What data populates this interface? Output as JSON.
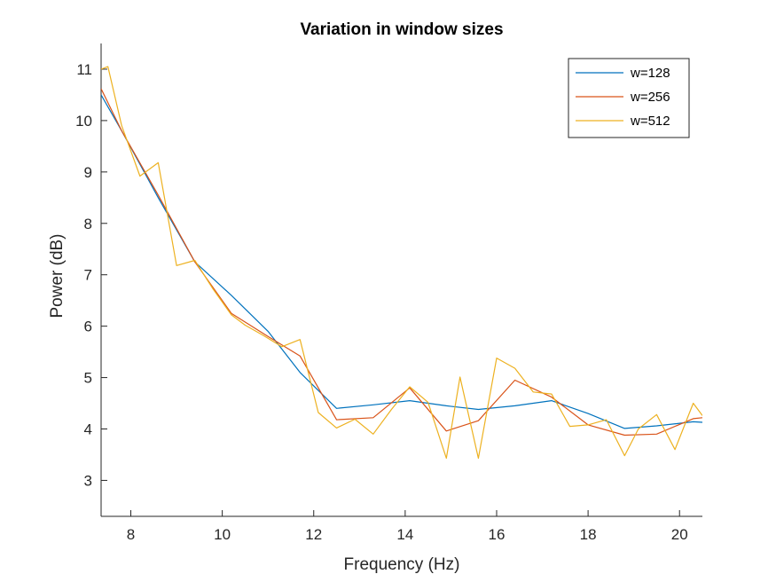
{
  "chart_data": {
    "type": "line",
    "title": "Variation in window sizes",
    "xlabel": "Frequency (Hz)",
    "ylabel": "Power (dB)",
    "xlim": [
      7.35,
      20.5
    ],
    "ylim": [
      2.3,
      11.5
    ],
    "xticks": [
      8,
      10,
      12,
      14,
      16,
      18,
      20
    ],
    "yticks": [
      3,
      4,
      5,
      6,
      7,
      8,
      9,
      10,
      11
    ],
    "grid": false,
    "legend_position": "top-right",
    "series": [
      {
        "name": "w=128",
        "color": "#0072BD",
        "x": [
          7.35,
          7.8,
          8.6,
          9.4,
          10.2,
          11.0,
          11.7,
          12.5,
          13.3,
          14.1,
          14.9,
          15.6,
          16.4,
          17.2,
          18.0,
          18.8,
          19.5,
          20.3,
          20.5
        ],
        "y": [
          10.5,
          9.8,
          8.5,
          7.25,
          6.6,
          5.9,
          5.1,
          4.4,
          4.47,
          4.55,
          4.45,
          4.38,
          4.45,
          4.55,
          4.3,
          4.01,
          4.06,
          4.14,
          4.13
        ]
      },
      {
        "name": "w=256",
        "color": "#D95319",
        "x": [
          7.35,
          7.8,
          8.6,
          9.4,
          10.2,
          11.0,
          11.7,
          12.5,
          13.3,
          14.1,
          14.9,
          15.6,
          16.4,
          17.2,
          18.0,
          18.8,
          19.5,
          20.3,
          20.5
        ],
        "y": [
          10.62,
          9.8,
          8.55,
          7.25,
          6.25,
          5.8,
          5.42,
          4.18,
          4.22,
          4.8,
          3.96,
          4.16,
          4.95,
          4.62,
          4.08,
          3.88,
          3.9,
          4.2,
          4.22
        ]
      },
      {
        "name": "w=512",
        "color": "#EDB120",
        "x": [
          7.35,
          7.5,
          7.8,
          8.2,
          8.6,
          9.0,
          9.4,
          9.8,
          10.2,
          10.5,
          10.9,
          11.3,
          11.7,
          12.1,
          12.5,
          12.9,
          13.3,
          13.7,
          14.1,
          14.5,
          14.9,
          15.2,
          15.6,
          16.0,
          16.4,
          16.8,
          17.2,
          17.6,
          18.0,
          18.4,
          18.8,
          19.1,
          19.5,
          19.9,
          20.3,
          20.5
        ],
        "y": [
          11.0,
          11.05,
          9.9,
          8.92,
          9.18,
          7.18,
          7.28,
          6.72,
          6.22,
          6.02,
          5.82,
          5.6,
          5.74,
          4.32,
          4.02,
          4.19,
          3.9,
          4.38,
          4.82,
          4.52,
          3.43,
          5.01,
          3.43,
          5.38,
          5.18,
          4.72,
          4.68,
          4.05,
          4.08,
          4.18,
          3.48,
          4.0,
          4.28,
          3.6,
          4.5,
          4.26
        ]
      }
    ]
  }
}
